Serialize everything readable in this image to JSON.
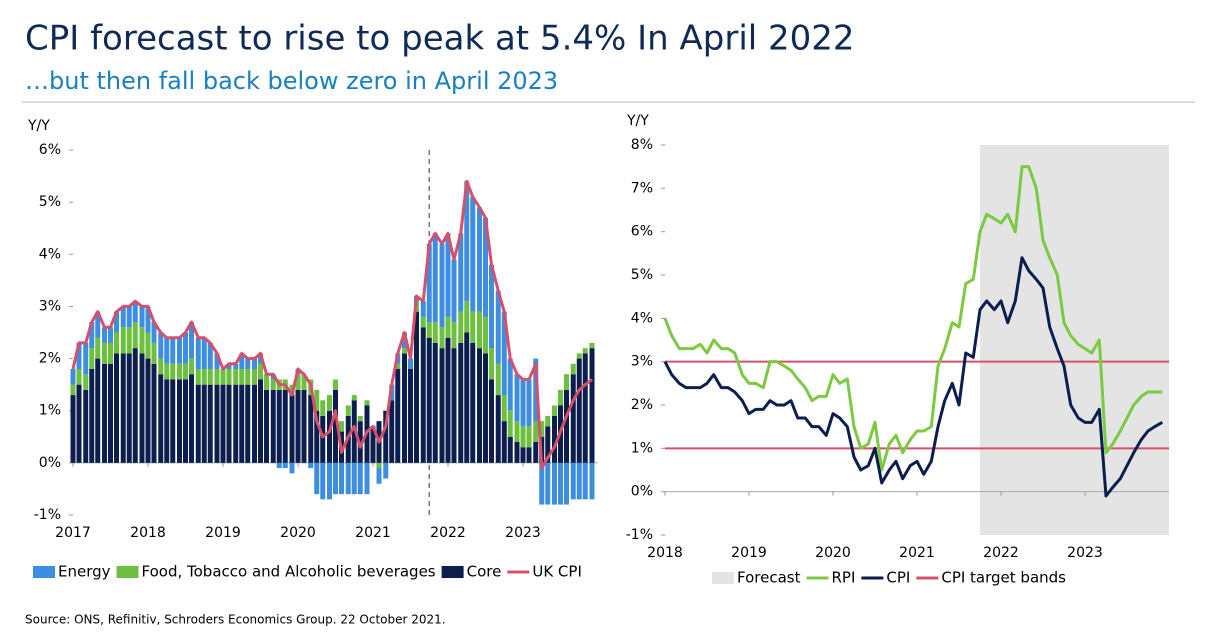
{
  "title": "CPI forecast to rise to peak at 5.4% In April 2022",
  "subtitle": "…but then fall back below zero in April 2023",
  "source": "Source: ONS, Refinitiv, Schroders Economics Group. 22 October 2021.",
  "chart_data": [
    {
      "type": "bar",
      "stacked": true,
      "y_label": "Y/Y",
      "grid": false,
      "xlim": [
        2017,
        2024
      ],
      "xticks": [
        2017,
        2018,
        2019,
        2020,
        2021,
        2022,
        2023
      ],
      "ylim": [
        -1,
        6
      ],
      "yticks": [
        {
          "value": -1,
          "label": "-1%"
        },
        {
          "value": 0,
          "label": "0%"
        },
        {
          "value": 1,
          "label": "1%"
        },
        {
          "value": 2,
          "label": "2%"
        },
        {
          "value": 3,
          "label": "3%"
        },
        {
          "value": 4,
          "label": "4%"
        },
        {
          "value": 5,
          "label": "5%"
        },
        {
          "value": 6,
          "label": "6%"
        }
      ],
      "forecast_from": 2021.75,
      "x": [
        2017,
        2017.08,
        2017.17,
        2017.25,
        2017.33,
        2017.42,
        2017.5,
        2017.58,
        2017.67,
        2017.75,
        2017.83,
        2017.92,
        2018,
        2018.08,
        2018.17,
        2018.25,
        2018.33,
        2018.42,
        2018.5,
        2018.58,
        2018.67,
        2018.75,
        2018.83,
        2018.92,
        2019,
        2019.08,
        2019.17,
        2019.25,
        2019.33,
        2019.42,
        2019.5,
        2019.58,
        2019.67,
        2019.75,
        2019.83,
        2019.92,
        2020,
        2020.08,
        2020.17,
        2020.25,
        2020.33,
        2020.42,
        2020.5,
        2020.58,
        2020.67,
        2020.75,
        2020.83,
        2020.92,
        2021,
        2021.08,
        2021.17,
        2021.25,
        2021.33,
        2021.42,
        2021.5,
        2021.58,
        2021.67,
        2021.75,
        2021.83,
        2021.92,
        2022,
        2022.08,
        2022.17,
        2022.25,
        2022.33,
        2022.42,
        2022.5,
        2022.58,
        2022.67,
        2022.75,
        2022.83,
        2022.92,
        2023,
        2023.08,
        2023.17,
        2023.25,
        2023.33,
        2023.42,
        2023.5,
        2023.58,
        2023.67,
        2023.75,
        2023.83,
        2023.92
      ],
      "series": [
        {
          "name": "Energy",
          "color": "#3d8ee0",
          "values": [
            0.3,
            0.5,
            0.6,
            0.5,
            0.5,
            0.3,
            0.3,
            0.4,
            0.4,
            0.4,
            0.4,
            0.4,
            0.5,
            0.4,
            0.5,
            0.5,
            0.5,
            0.5,
            0.6,
            0.7,
            0.6,
            0.6,
            0.5,
            0.3,
            0,
            0.1,
            0.1,
            0.3,
            0.2,
            0.2,
            0.2,
            0,
            0.1,
            -0.1,
            -0.1,
            -0.2,
            0.1,
            0,
            -0.1,
            -0.6,
            -0.7,
            -0.7,
            -0.6,
            -0.6,
            -0.6,
            -0.6,
            -0.6,
            -0.6,
            0,
            -0.3,
            -0.3,
            0.3,
            0.2,
            0.3,
            0.2,
            0.1,
            0.3,
            1.5,
            1.7,
            1.6,
            1.6,
            1.2,
            1.5,
            2.3,
            2.2,
            2.0,
            1.9,
            1.6,
            1.4,
            1.6,
            1.0,
            0.9,
            0.9,
            0.9,
            1.2,
            -0.8,
            -0.8,
            -0.8,
            -0.8,
            -0.8,
            -0.7,
            -0.7,
            -0.7,
            -0.7
          ]
        },
        {
          "name": "Food, Tobacco and Alcoholic beverages",
          "color": "#6cbf3f",
          "values": [
            0.2,
            0.3,
            0.3,
            0.4,
            0.4,
            0.4,
            0.4,
            0.4,
            0.5,
            0.5,
            0.5,
            0.5,
            0.5,
            0.4,
            0.3,
            0.3,
            0.3,
            0.3,
            0.3,
            0.3,
            0.3,
            0.3,
            0.3,
            0.3,
            0.3,
            0.3,
            0.3,
            0.3,
            0.3,
            0.3,
            0.3,
            0.3,
            0.2,
            0.2,
            0.2,
            0.2,
            0.3,
            0.3,
            0.3,
            0.4,
            0.3,
            0.3,
            0.2,
            0.2,
            0.2,
            0.1,
            0.1,
            0.1,
            0,
            -0.1,
            0,
            0,
            0.1,
            0.1,
            0,
            0.2,
            0.2,
            0.3,
            0.4,
            0.4,
            0.4,
            0.5,
            0.6,
            0.6,
            0.6,
            0.7,
            0.7,
            0.6,
            0.6,
            0.5,
            0.5,
            0.4,
            0.4,
            0.4,
            0.4,
            0.3,
            0.2,
            0.2,
            0.3,
            0.3,
            0.2,
            0.1,
            0.1,
            0.1
          ]
        },
        {
          "name": "Core",
          "color": "#0b1e4e",
          "values": [
            1.3,
            1.5,
            1.4,
            1.8,
            2.0,
            1.9,
            1.9,
            2.1,
            2.1,
            2.1,
            2.2,
            2.1,
            2.0,
            1.9,
            1.7,
            1.6,
            1.6,
            1.6,
            1.6,
            1.7,
            1.5,
            1.5,
            1.5,
            1.5,
            1.5,
            1.5,
            1.5,
            1.5,
            1.5,
            1.5,
            1.6,
            1.4,
            1.4,
            1.4,
            1.4,
            1.3,
            1.4,
            1.4,
            1.3,
            1.0,
            0.9,
            1.0,
            1.4,
            0.6,
            0.9,
            1.2,
            0.8,
            1.1,
            0.7,
            0.8,
            1.0,
            1.2,
            1.8,
            2.1,
            1.8,
            2.9,
            2.6,
            2.4,
            2.3,
            2.2,
            2.4,
            2.2,
            2.3,
            2.5,
            2.3,
            2.2,
            2.1,
            1.6,
            1.3,
            0.8,
            0.5,
            0.4,
            0.3,
            0.3,
            0.4,
            0.5,
            0.7,
            0.9,
            1.1,
            1.4,
            1.7,
            2.0,
            2.1,
            2.2
          ]
        },
        {
          "name": "UK CPI",
          "type": "line",
          "color": "#d6506b",
          "values": [
            1.8,
            2.3,
            2.3,
            2.7,
            2.9,
            2.6,
            2.6,
            2.9,
            3.0,
            3.0,
            3.1,
            3.0,
            3.0,
            2.7,
            2.5,
            2.4,
            2.4,
            2.4,
            2.5,
            2.7,
            2.4,
            2.4,
            2.3,
            2.1,
            1.8,
            1.9,
            1.9,
            2.1,
            2.0,
            2.0,
            2.1,
            1.7,
            1.7,
            1.5,
            1.5,
            1.3,
            1.8,
            1.7,
            1.5,
            0.8,
            0.5,
            0.6,
            1.0,
            0.2,
            0.5,
            0.7,
            0.3,
            0.6,
            0.7,
            0.4,
            0.7,
            1.5,
            2.1,
            2.5,
            2.0,
            3.2,
            3.1,
            4.2,
            4.4,
            4.2,
            4.4,
            3.9,
            4.4,
            5.4,
            5.1,
            4.9,
            4.7,
            3.8,
            3.3,
            2.9,
            2.0,
            1.7,
            1.6,
            1.6,
            1.9,
            -0.1,
            0.1,
            0.3,
            0.6,
            0.9,
            1.2,
            1.4,
            1.5,
            1.6
          ]
        }
      ]
    },
    {
      "type": "line",
      "y_label": "Y/Y",
      "grid": false,
      "xlim": [
        2018,
        2024
      ],
      "xticks": [
        2018,
        2019,
        2020,
        2021,
        2022,
        2023
      ],
      "ylim": [
        -1,
        8
      ],
      "yticks": [
        {
          "value": -1,
          "label": "-1%"
        },
        {
          "value": 0,
          "label": "0%"
        },
        {
          "value": 1,
          "label": "1%"
        },
        {
          "value": 2,
          "label": "2%"
        },
        {
          "value": 3,
          "label": "3%"
        },
        {
          "value": 4,
          "label": "4%"
        },
        {
          "value": 5,
          "label": "5%"
        },
        {
          "value": 6,
          "label": "6%"
        },
        {
          "value": 7,
          "label": "7%"
        },
        {
          "value": 8,
          "label": "8%"
        }
      ],
      "forecast": {
        "name": "Forecast",
        "color": "#e4e4e4",
        "from": 2021.75,
        "to": 2024
      },
      "bands": {
        "name": "CPI target bands",
        "color": "#d6506b",
        "values": [
          1,
          3
        ]
      },
      "x": [
        2018,
        2018.08,
        2018.17,
        2018.25,
        2018.33,
        2018.42,
        2018.5,
        2018.58,
        2018.67,
        2018.75,
        2018.83,
        2018.92,
        2019,
        2019.08,
        2019.17,
        2019.25,
        2019.33,
        2019.42,
        2019.5,
        2019.58,
        2019.67,
        2019.75,
        2019.83,
        2019.92,
        2020,
        2020.08,
        2020.17,
        2020.25,
        2020.33,
        2020.42,
        2020.5,
        2020.58,
        2020.67,
        2020.75,
        2020.83,
        2020.92,
        2021,
        2021.08,
        2021.17,
        2021.25,
        2021.33,
        2021.42,
        2021.5,
        2021.58,
        2021.67,
        2021.75,
        2021.83,
        2021.92,
        2022,
        2022.08,
        2022.17,
        2022.25,
        2022.33,
        2022.42,
        2022.5,
        2022.58,
        2022.67,
        2022.75,
        2022.83,
        2022.92,
        2023,
        2023.08,
        2023.17,
        2023.25,
        2023.33,
        2023.42,
        2023.5,
        2023.58,
        2023.67,
        2023.75,
        2023.83,
        2023.92
      ],
      "series": [
        {
          "name": "RPI",
          "color": "#7cc942",
          "values": [
            4.0,
            3.6,
            3.3,
            3.3,
            3.3,
            3.4,
            3.2,
            3.5,
            3.3,
            3.3,
            3.2,
            2.7,
            2.5,
            2.5,
            2.4,
            3.0,
            3.0,
            2.9,
            2.8,
            2.6,
            2.4,
            2.1,
            2.2,
            2.2,
            2.7,
            2.5,
            2.6,
            1.5,
            1.0,
            1.1,
            1.6,
            0.5,
            1.1,
            1.3,
            0.9,
            1.2,
            1.4,
            1.4,
            1.5,
            2.9,
            3.3,
            3.9,
            3.8,
            4.8,
            4.9,
            6.0,
            6.4,
            6.3,
            6.2,
            6.4,
            6.0,
            7.5,
            7.5,
            7.0,
            5.8,
            5.4,
            5.0,
            3.9,
            3.6,
            3.4,
            3.3,
            3.2,
            3.5,
            0.9,
            1.1,
            1.4,
            1.7,
            2.0,
            2.2,
            2.3,
            2.3,
            2.3
          ]
        },
        {
          "name": "CPI",
          "color": "#0b1e4e",
          "values": [
            3.0,
            2.7,
            2.5,
            2.4,
            2.4,
            2.4,
            2.5,
            2.7,
            2.4,
            2.4,
            2.3,
            2.1,
            1.8,
            1.9,
            1.9,
            2.1,
            2.0,
            2.0,
            2.1,
            1.7,
            1.7,
            1.5,
            1.5,
            1.3,
            1.8,
            1.7,
            1.5,
            0.8,
            0.5,
            0.6,
            1.0,
            0.2,
            0.5,
            0.7,
            0.3,
            0.6,
            0.7,
            0.4,
            0.7,
            1.5,
            2.1,
            2.5,
            2.0,
            3.2,
            3.1,
            4.2,
            4.4,
            4.2,
            4.4,
            3.9,
            4.4,
            5.4,
            5.1,
            4.9,
            4.7,
            3.8,
            3.3,
            2.9,
            2.0,
            1.7,
            1.6,
            1.6,
            1.9,
            -0.1,
            0.1,
            0.3,
            0.6,
            0.9,
            1.2,
            1.4,
            1.5,
            1.6
          ]
        }
      ]
    }
  ]
}
